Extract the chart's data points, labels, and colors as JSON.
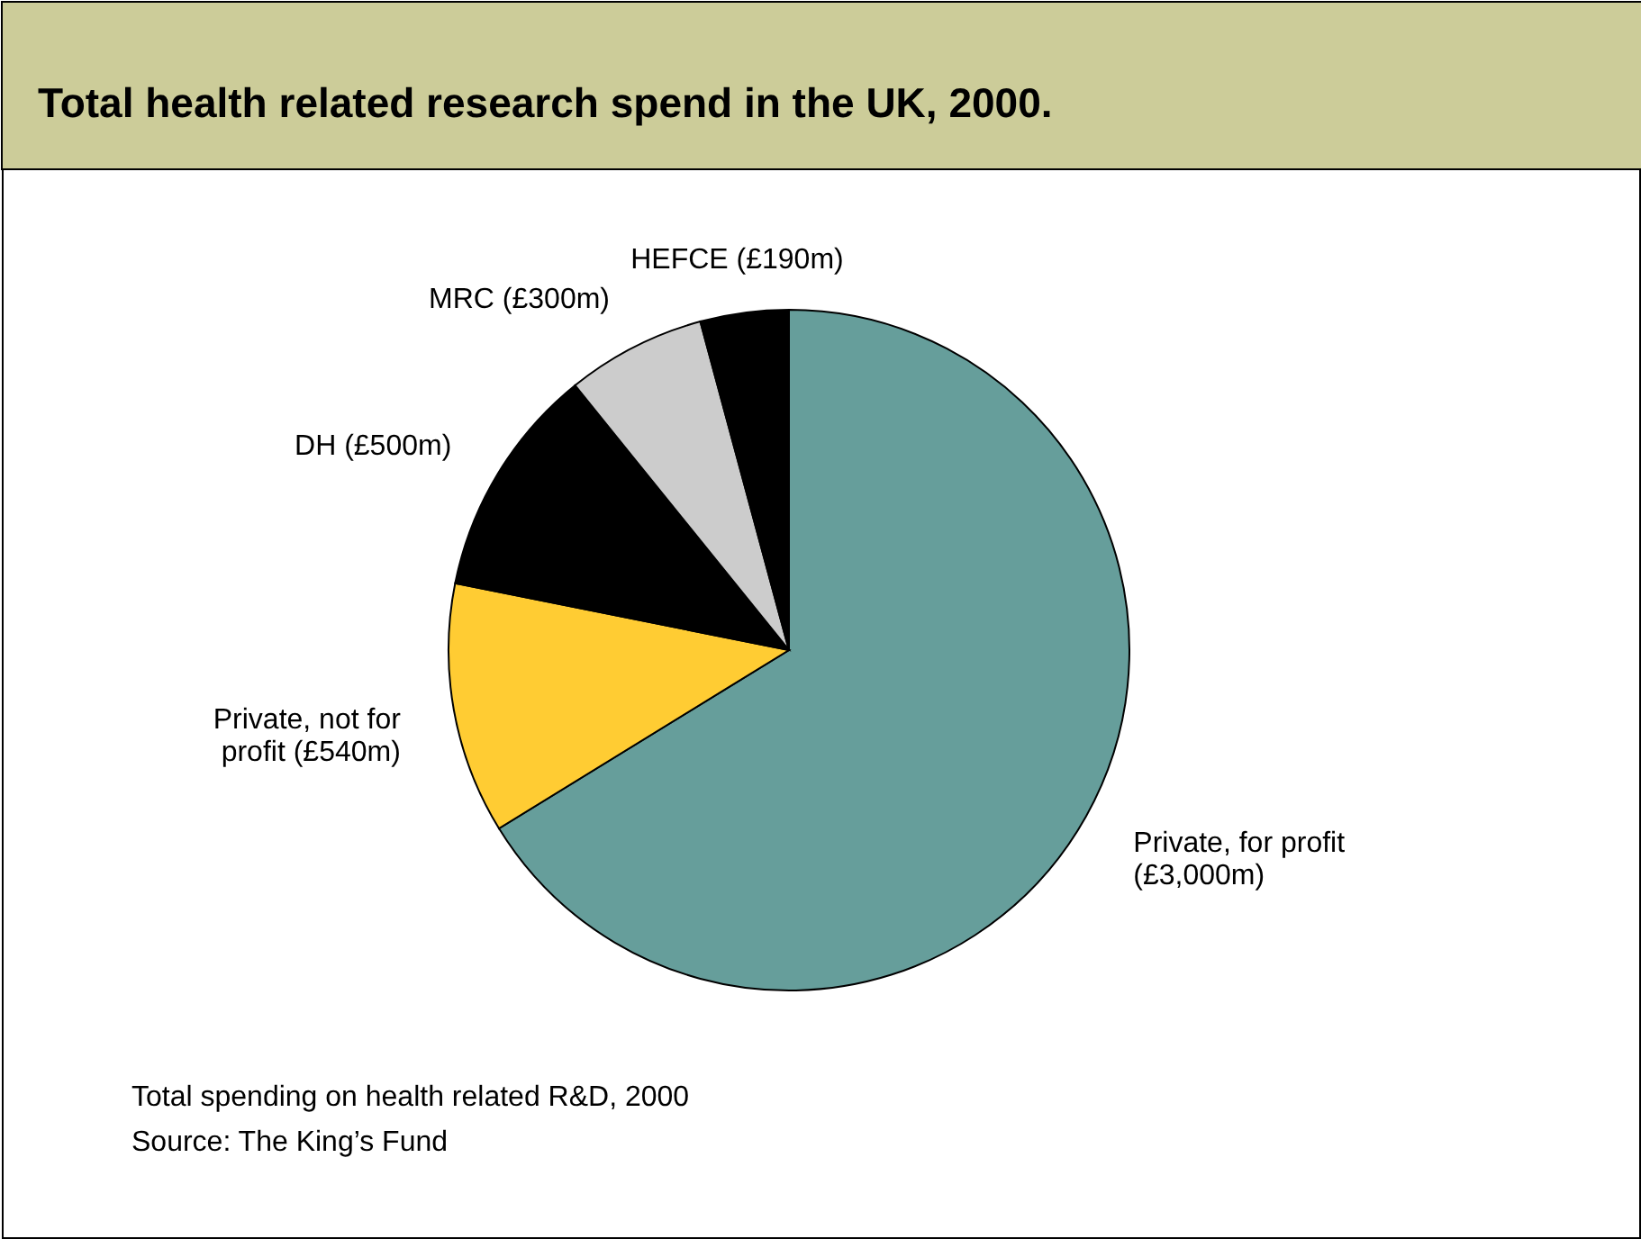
{
  "chart_data": {
    "type": "pie",
    "title": "Total health related research spend in the UK, 2000.",
    "categories": [
      "Private, for profit\n(£3,000m)",
      "Private, not for\nprofit (£540m)",
      "DH (£500m)",
      "MRC (£300m)",
      "HEFCE (£190m)"
    ],
    "values": [
      3000,
      540,
      500,
      300,
      190
    ],
    "colors": [
      "#669e9b",
      "#ffcc33",
      "#000000",
      "#cccccc",
      "#000000"
    ],
    "annotations": [
      "Total spending on health related R&D, 2000",
      "Source: The King’s Fund"
    ]
  }
}
